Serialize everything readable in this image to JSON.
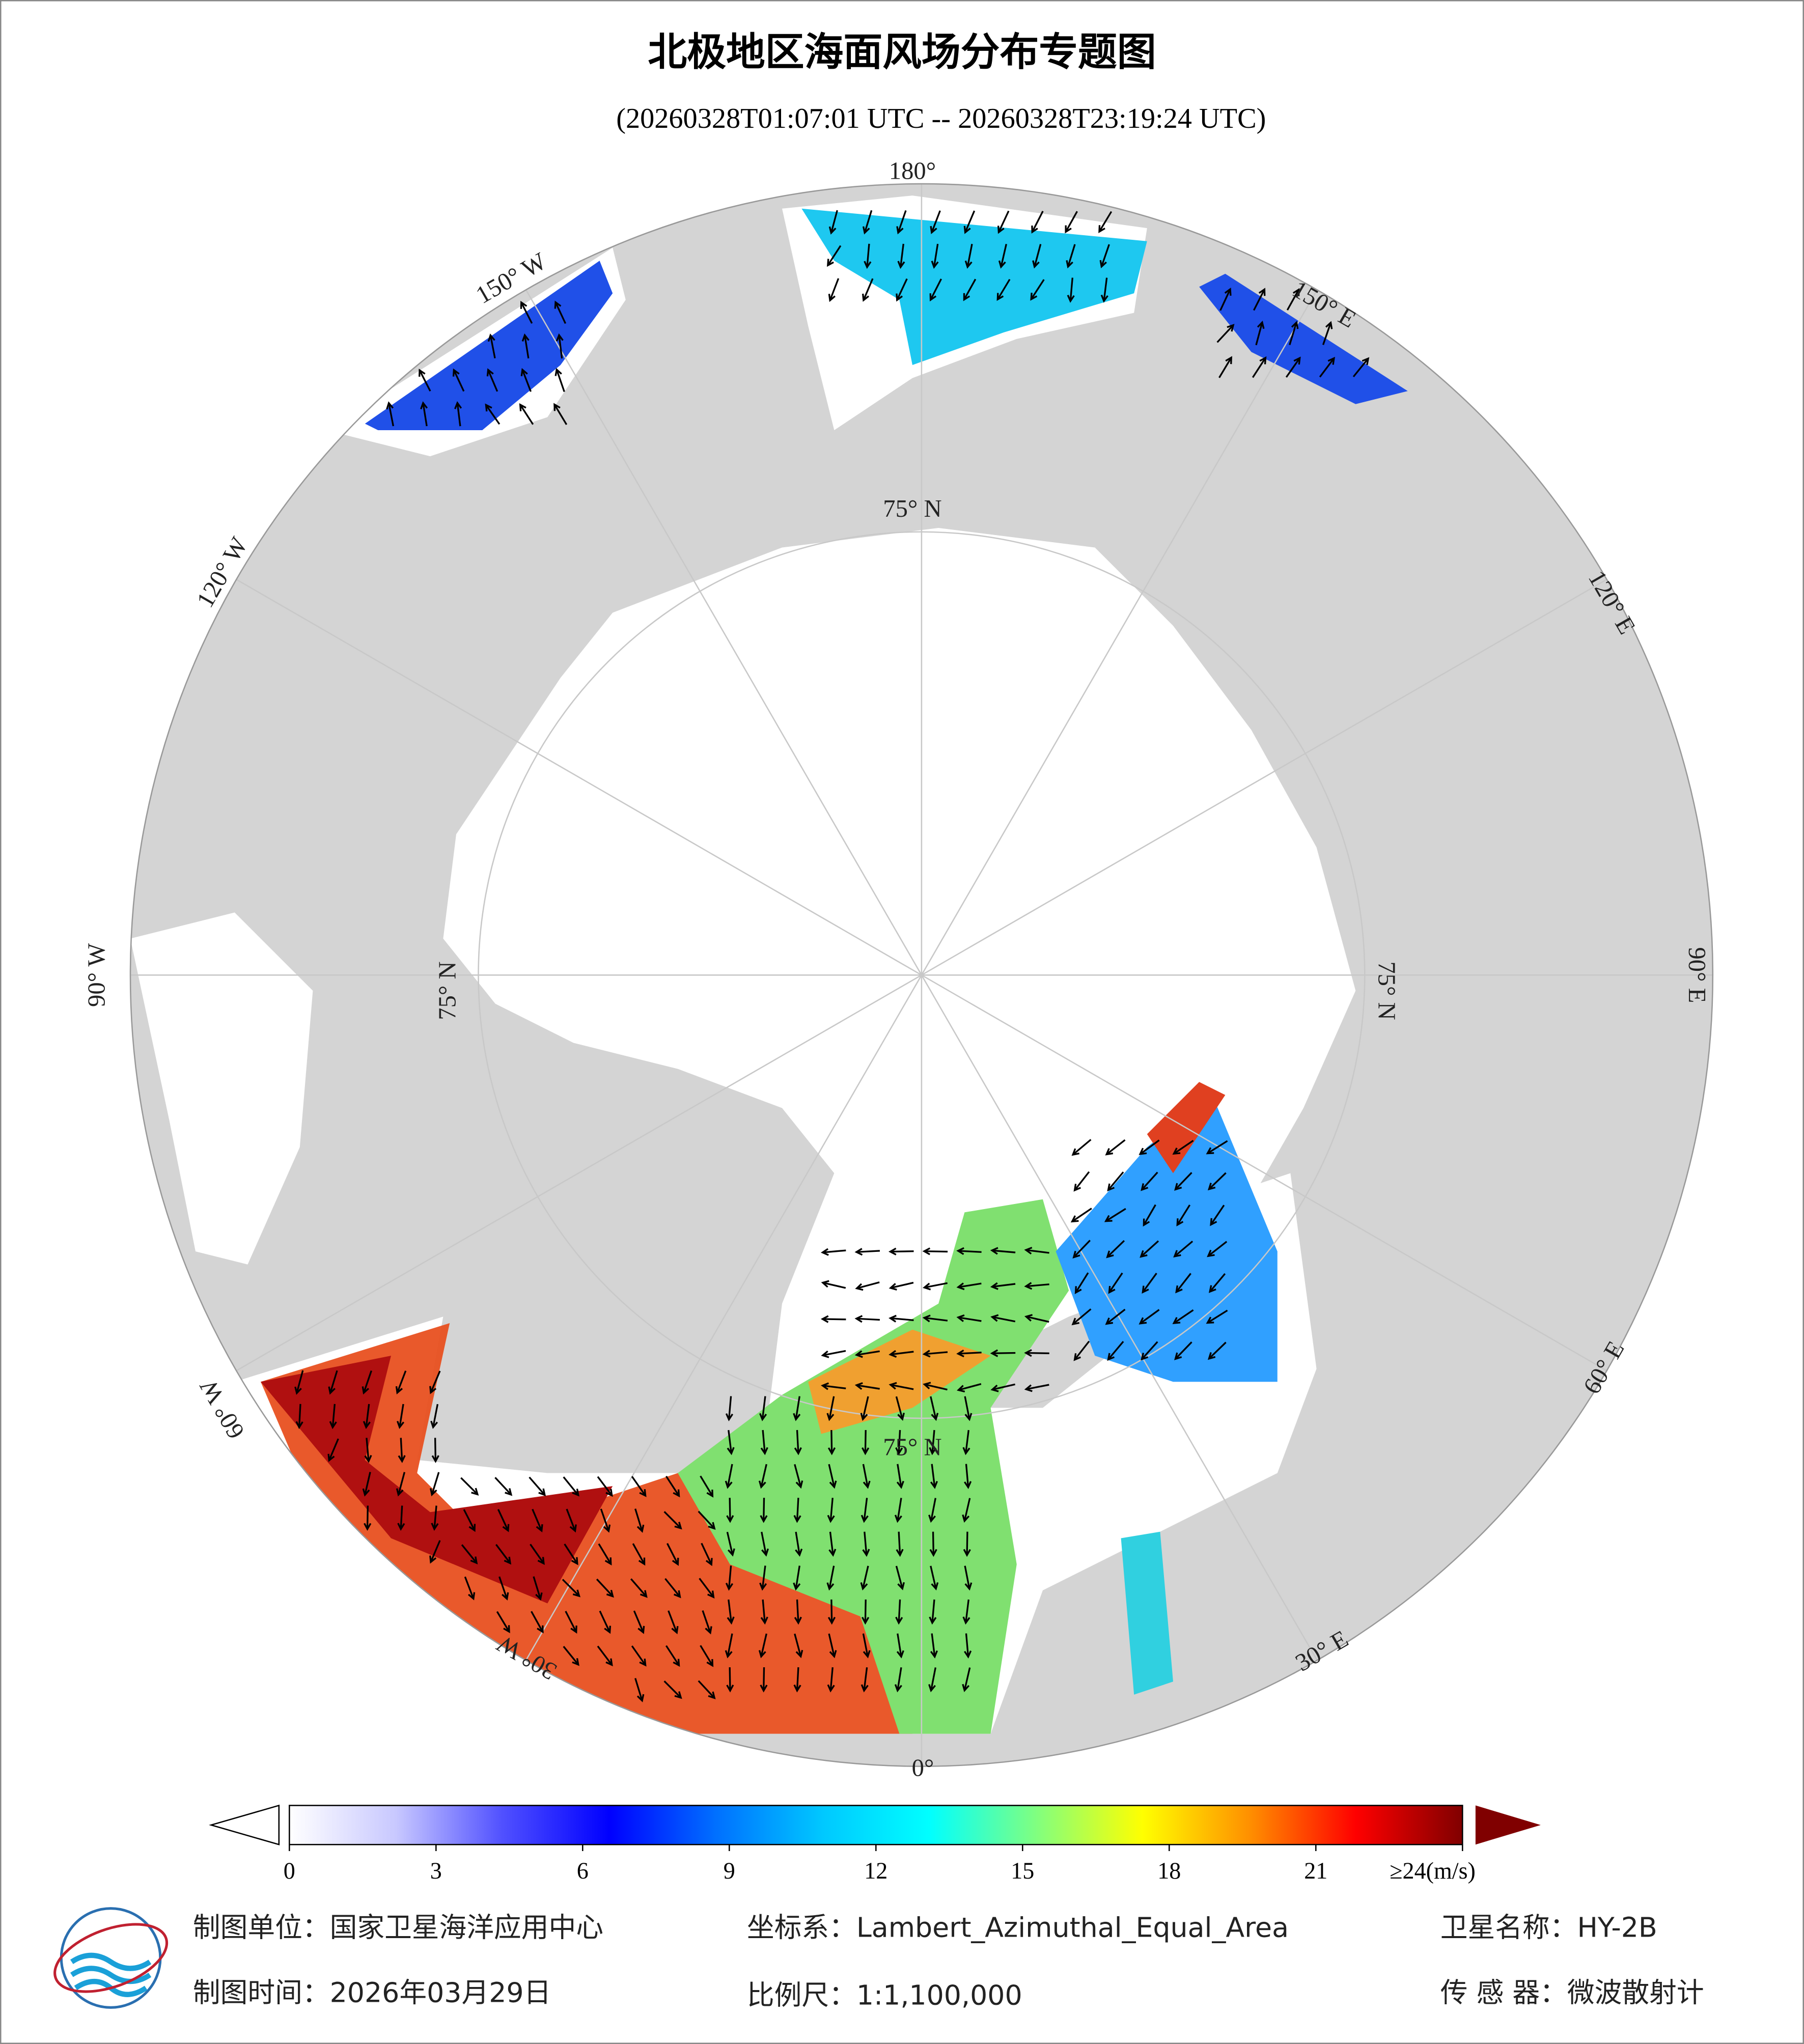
{
  "header": {
    "title": "北极地区海面风场分布专题图",
    "subtitle": "(20260328T01:07:01 UTC -- 20260328T23:19:24 UTC)"
  },
  "map": {
    "meridian_labels": [
      "180°",
      "150° E",
      "120° E",
      "90° E",
      "60° E",
      "30° E",
      "0°",
      "30° W",
      "60° W",
      "90° W",
      "120° W",
      "150° W"
    ],
    "parallel_labels": [
      "75° N",
      "75° N",
      "75° N",
      "75° N"
    ]
  },
  "colorbar": {
    "lim": [
      0,
      24
    ],
    "ticks": [
      0,
      3,
      6,
      9,
      12,
      15,
      18,
      21,
      {
        "value": 24,
        "label": "≥24(m/s)"
      }
    ],
    "colors": [
      "#ffffff",
      "#c8c8ff",
      "#5050ff",
      "#0000ff",
      "#0070ff",
      "#00c8ff",
      "#00ffff",
      "#80ff80",
      "#ffff00",
      "#ff9000",
      "#ff0000",
      "#800000"
    ]
  },
  "footer": {
    "unit": "制图单位：国家卫星海洋应用中心",
    "crs": "坐标系：Lambert_Azimuthal_Equal_Area",
    "satellite": "卫星名称：HY-2B",
    "date": "制图时间：2026年03月29日",
    "scale": "比例尺：1:1,100,000",
    "sensor": "传 感 器：微波散射计"
  }
}
